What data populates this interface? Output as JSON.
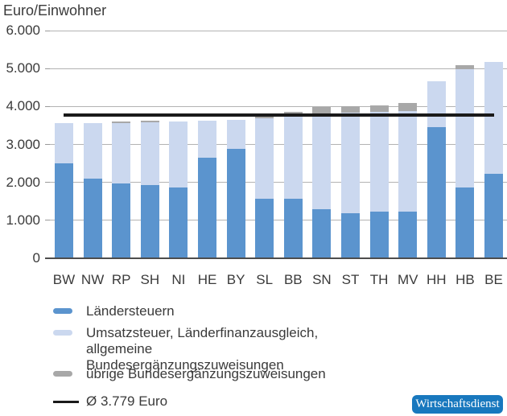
{
  "chart_data": {
    "type": "bar",
    "stacked": true,
    "title": "Euro/Einwohner",
    "grid": true,
    "legend_position": "bottom",
    "categories": [
      "BW",
      "NW",
      "RP",
      "SH",
      "NI",
      "HE",
      "BY",
      "SL",
      "BB",
      "SN",
      "ST",
      "TH",
      "MV",
      "HH",
      "HB",
      "BE"
    ],
    "series": [
      {
        "name": "Ländersteuern",
        "color": "#5b94ce",
        "values": [
          2500,
          2100,
          1970,
          1920,
          1860,
          2660,
          2880,
          1570,
          1560,
          1290,
          1190,
          1220,
          1220,
          3460,
          1870,
          2230
        ]
      },
      {
        "name": "Umsatzsteuer, Länderfinanzausgleich, allgemeine Bundesergänzungszuweisungen",
        "color": "#cbd8ef",
        "values": [
          1060,
          1470,
          1600,
          1670,
          1750,
          970,
          770,
          2120,
          2170,
          2530,
          2650,
          2630,
          2670,
          1200,
          3110,
          2940
        ]
      },
      {
        "name": "übrige Bundesergänzungszuweisungen",
        "color": "#a8a8a8",
        "values": [
          0,
          0,
          45,
          30,
          0,
          0,
          0,
          120,
          130,
          170,
          170,
          180,
          210,
          0,
          110,
          0
        ]
      }
    ],
    "average_line": {
      "label": "Ø 3.779 Euro",
      "value": 3779,
      "color": "#1a1a1a"
    },
    "y_axis": {
      "max": 6000,
      "ticks": [
        0,
        1000,
        2000,
        3000,
        4000,
        5000,
        6000
      ],
      "tick_labels": [
        "0",
        "1.000",
        "2.000",
        "3.000",
        "4.000",
        "5.000",
        "6.000"
      ]
    }
  },
  "badge": {
    "label": "Wirtschaftsdienst",
    "color": "#1878be"
  }
}
